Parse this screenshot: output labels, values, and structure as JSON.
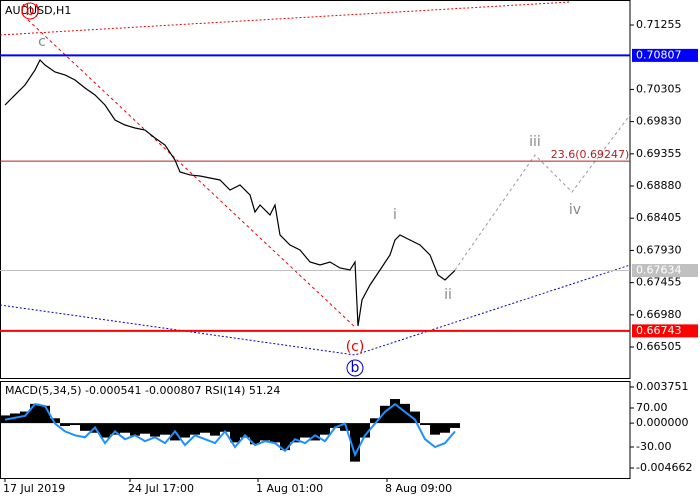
{
  "chart_data": [
    {
      "type": "line",
      "title": "AUDUSD,H1",
      "x": [
        5,
        15,
        25,
        35,
        40,
        45,
        55,
        65,
        75,
        85,
        95,
        105,
        115,
        125,
        135,
        145,
        155,
        165,
        175,
        180,
        190,
        200,
        210,
        220,
        230,
        240,
        250,
        255,
        260,
        270,
        275,
        280,
        290,
        300,
        310,
        320,
        330,
        340,
        350,
        355,
        358,
        362,
        370,
        380,
        390,
        395,
        400,
        410,
        420,
        430,
        438,
        445,
        455
      ],
      "series": [
        {
          "color": "#000000",
          "values": [
            0.70075,
            0.70223,
            0.7037,
            0.70591,
            0.70739,
            0.70665,
            0.70562,
            0.70518,
            0.70444,
            0.70326,
            0.70223,
            0.70075,
            0.69854,
            0.6978,
            0.69736,
            0.69706,
            0.69588,
            0.69485,
            0.69264,
            0.69087,
            0.69043,
            0.69028,
            0.68998,
            0.68969,
            0.68821,
            0.68895,
            0.68748,
            0.68497,
            0.686,
            0.68453,
            0.686,
            0.68158,
            0.6801,
            0.67936,
            0.67759,
            0.67715,
            0.67759,
            0.67671,
            0.67641,
            0.67759,
            0.66815,
            0.67199,
            0.6742,
            0.67641,
            0.67863,
            0.68084,
            0.68158,
            0.68084,
            0.6801,
            0.67863,
            0.67568,
            0.67494,
            0.67634
          ]
        }
      ],
      "xlim": [
        0,
        630
      ],
      "ylim": [
        0.66048,
        0.71624
      ],
      "xticks": [
        {
          "value": 5,
          "label": "17 Jul 2019"
        },
        {
          "value": 130,
          "label": "24 Jul 17:00"
        },
        {
          "value": 258,
          "label": "1 Aug 01:00"
        },
        {
          "value": 387,
          "label": "8 Aug 09:00"
        }
      ],
      "yticks": [
        0.71255,
        0.70305,
        {
          "value": 0.6983,
          "label": "0.69830"
        },
        0.69355,
        {
          "value": 0.6888,
          "label": "0.68880"
        },
        0.68405,
        {
          "value": 0.6793,
          "label": "0.67930"
        },
        0.67455,
        {
          "value": 0.6698,
          "label": "0.66980"
        },
        0.66505
      ],
      "levels": [
        {
          "value": 0.70807,
          "color": "#0000ff"
        },
        {
          "value": 0.69247,
          "color": "#b22222"
        },
        {
          "value": 0.67634,
          "color": "#c0c0c0"
        },
        {
          "value": 0.66743,
          "color": "#ff0000"
        }
      ],
      "annotations": [
        "(b)",
        "c",
        "(c)",
        "b",
        "i",
        "ii",
        "iii",
        "iv",
        "23.6(0.69247)"
      ]
    },
    {
      "type": "bar",
      "title": "MACD(5,34,5) -0.000541 -0.000807 RSI(14) 51.24",
      "x": [
        5,
        15,
        25,
        35,
        45,
        55,
        65,
        75,
        85,
        95,
        105,
        115,
        125,
        135,
        145,
        155,
        165,
        175,
        185,
        195,
        205,
        215,
        225,
        235,
        245,
        255,
        265,
        275,
        285,
        295,
        305,
        315,
        325,
        335,
        345,
        355,
        365,
        375,
        385,
        395,
        405,
        415,
        425,
        435,
        445,
        455
      ],
      "series": [
        {
          "color": "#000000",
          "values": [
            0.0008,
            0.001,
            0.0012,
            0.002,
            0.0018,
            0.0005,
            -0.0003,
            -0.0002,
            -0.0008,
            -0.001,
            -0.0015,
            -0.0012,
            -0.001,
            -0.0013,
            -0.0011,
            -0.0014,
            -0.0012,
            -0.0018,
            -0.0015,
            -0.0012,
            -0.001,
            -0.0013,
            -0.0009,
            -0.002,
            -0.0015,
            -0.0022,
            -0.0018,
            -0.002,
            -0.0028,
            -0.002,
            -0.0015,
            -0.0018,
            -0.0012,
            -0.0005,
            -0.0008,
            -0.004,
            -0.0015,
            0.0005,
            0.0018,
            0.0025,
            0.002,
            0.0012,
            -0.0002,
            -0.0012,
            -0.001,
            -0.0005
          ]
        },
        {
          "color": "#1e90ff",
          "type": "line",
          "axis": "y2",
          "values": [
            40,
            45,
            50,
            80,
            75,
            30,
            10,
            0,
            -5,
            20,
            -20,
            10,
            -10,
            0,
            -15,
            -5,
            -20,
            10,
            -25,
            0,
            -10,
            -20,
            10,
            -30,
            0,
            -25,
            -15,
            -20,
            -40,
            -10,
            -20,
            0,
            -15,
            20,
            30,
            -50,
            0,
            30,
            60,
            80,
            60,
            40,
            -10,
            -30,
            -20,
            10
          ]
        }
      ],
      "xlim": [
        0,
        630
      ],
      "ylim": [
        -0.004662,
        0.003751
      ],
      "yticks": [
        0.003751,
        {
          "value": 0,
          "label": "0.000000"
        },
        -0.004662
      ],
      "y2lim": [
        -83.8,
        123.8
      ],
      "y2ticks": [
        {
          "value": 70,
          "label": "70.00"
        },
        {
          "value": -30,
          "label": "-30.00"
        }
      ]
    }
  ]
}
